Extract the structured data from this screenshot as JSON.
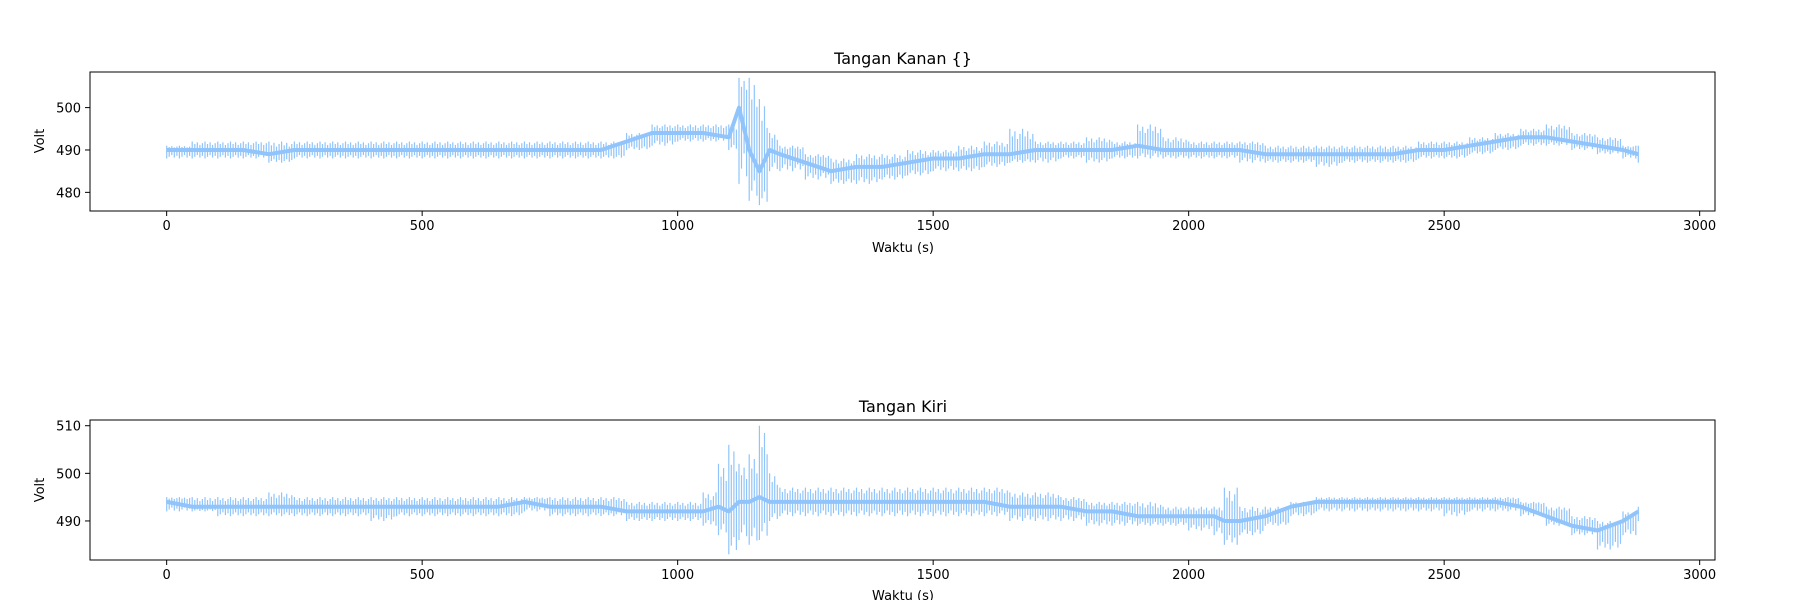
{
  "chart_data": [
    {
      "type": "line",
      "title": "Tangan Kanan {}",
      "xlabel": "Waktu (s)",
      "ylabel": "Volt",
      "xlim": [
        -150,
        3030
      ],
      "ylim": [
        475.6,
        508.4
      ],
      "xticks": [
        0,
        500,
        1000,
        1500,
        2000,
        2500,
        3000
      ],
      "yticks": [
        480,
        490,
        500
      ],
      "grid": false,
      "legend": "none",
      "series_color": "#90c4fb",
      "series": [
        {
          "x": [
            0,
            50,
            100,
            150,
            200,
            250,
            300,
            350,
            400,
            450,
            500,
            550,
            600,
            650,
            700,
            750,
            800,
            850,
            900,
            950,
            1000,
            1050,
            1100,
            1120,
            1140,
            1160,
            1180,
            1200,
            1250,
            1300,
            1350,
            1400,
            1450,
            1500,
            1550,
            1600,
            1650,
            1700,
            1750,
            1800,
            1850,
            1900,
            1950,
            2000,
            2050,
            2100,
            2150,
            2200,
            2250,
            2300,
            2350,
            2400,
            2450,
            2500,
            2550,
            2600,
            2650,
            2700,
            2750,
            2800,
            2850,
            2880
          ],
          "y": [
            490,
            490,
            490,
            490,
            489,
            490,
            490,
            490,
            490,
            490,
            490,
            490,
            490,
            490,
            490,
            490,
            490,
            490,
            492,
            494,
            494,
            494,
            493,
            500,
            490,
            485,
            490,
            489,
            487,
            485,
            486,
            486,
            487,
            488,
            488,
            489,
            489,
            490,
            490,
            490,
            490,
            491,
            490,
            490,
            490,
            490,
            489,
            489,
            489,
            489,
            489,
            489,
            490,
            490,
            491,
            492,
            493,
            493,
            492,
            491,
            490,
            489
          ],
          "min": [
            488,
            488,
            488,
            488,
            487,
            488,
            488,
            488,
            488,
            488,
            488,
            488,
            488,
            488,
            488,
            488,
            488,
            488,
            490,
            491,
            492,
            492,
            490,
            482,
            478,
            477,
            485,
            485,
            483,
            482,
            482,
            483,
            484,
            485,
            485,
            486,
            487,
            487,
            488,
            487,
            488,
            488,
            488,
            488,
            488,
            487,
            487,
            487,
            486,
            487,
            487,
            487,
            488,
            488,
            489,
            490,
            491,
            491,
            490,
            489,
            488,
            487
          ],
          "max": [
            491,
            492,
            492,
            492,
            492,
            492,
            492,
            492,
            492,
            492,
            492,
            492,
            492,
            492,
            492,
            492,
            492,
            492,
            494,
            496,
            496,
            496,
            496,
            507,
            507,
            502,
            494,
            491,
            489,
            488,
            489,
            489,
            490,
            490,
            491,
            492,
            495,
            492,
            492,
            493,
            492,
            496,
            493,
            492,
            492,
            492,
            491,
            491,
            491,
            491,
            491,
            491,
            492,
            492,
            493,
            494,
            495,
            496,
            494,
            493,
            491,
            491
          ]
        }
      ]
    },
    {
      "type": "line",
      "title": "Tangan Kiri",
      "xlabel": "Waktu (s)",
      "ylabel": "Volt",
      "xlim": [
        -150,
        3030
      ],
      "ylim": [
        481.8,
        511.2
      ],
      "xticks": [
        0,
        500,
        1000,
        1500,
        2000,
        2500,
        3000
      ],
      "yticks": [
        490,
        500,
        510
      ],
      "grid": false,
      "legend": "none",
      "series_color": "#90c4fb",
      "series": [
        {
          "x": [
            0,
            50,
            100,
            150,
            200,
            250,
            300,
            350,
            400,
            450,
            500,
            550,
            600,
            650,
            700,
            750,
            800,
            850,
            900,
            950,
            1000,
            1050,
            1080,
            1100,
            1120,
            1140,
            1160,
            1180,
            1200,
            1250,
            1300,
            1350,
            1400,
            1450,
            1500,
            1550,
            1600,
            1650,
            1700,
            1750,
            1800,
            1850,
            1900,
            1950,
            2000,
            2050,
            2070,
            2100,
            2150,
            2200,
            2250,
            2300,
            2350,
            2400,
            2450,
            2500,
            2550,
            2600,
            2650,
            2700,
            2750,
            2800,
            2850,
            2880
          ],
          "y": [
            494,
            493,
            493,
            493,
            493,
            493,
            493,
            493,
            493,
            493,
            493,
            493,
            493,
            493,
            494,
            493,
            493,
            493,
            492,
            492,
            492,
            492,
            493,
            492,
            494,
            494,
            495,
            494,
            494,
            494,
            494,
            494,
            494,
            494,
            494,
            494,
            494,
            493,
            493,
            493,
            492,
            492,
            491,
            491,
            491,
            491,
            490,
            490,
            491,
            493,
            494,
            494,
            494,
            494,
            494,
            494,
            494,
            494,
            493,
            491,
            489,
            488,
            490,
            492
          ],
          "min": [
            492,
            492,
            491,
            491,
            491,
            491,
            491,
            491,
            490,
            491,
            491,
            491,
            491,
            491,
            492,
            491,
            491,
            491,
            490,
            490,
            490,
            489,
            487,
            483,
            486,
            485,
            486,
            490,
            491,
            491,
            491,
            491,
            491,
            491,
            491,
            491,
            491,
            490,
            490,
            490,
            489,
            489,
            489,
            489,
            488,
            487,
            485,
            487,
            489,
            491,
            492,
            492,
            492,
            492,
            492,
            491,
            492,
            492,
            491,
            489,
            487,
            484,
            487,
            490
          ],
          "max": [
            495,
            495,
            495,
            495,
            496,
            495,
            495,
            495,
            495,
            495,
            495,
            495,
            495,
            495,
            495,
            495,
            495,
            495,
            494,
            494,
            494,
            496,
            502,
            506,
            502,
            504,
            510,
            500,
            497,
            497,
            497,
            497,
            497,
            497,
            497,
            497,
            497,
            496,
            496,
            495,
            494,
            494,
            494,
            493,
            493,
            493,
            497,
            493,
            493,
            494,
            495,
            495,
            495,
            495,
            495,
            495,
            495,
            495,
            494,
            493,
            491,
            490,
            492,
            493
          ]
        }
      ]
    }
  ]
}
